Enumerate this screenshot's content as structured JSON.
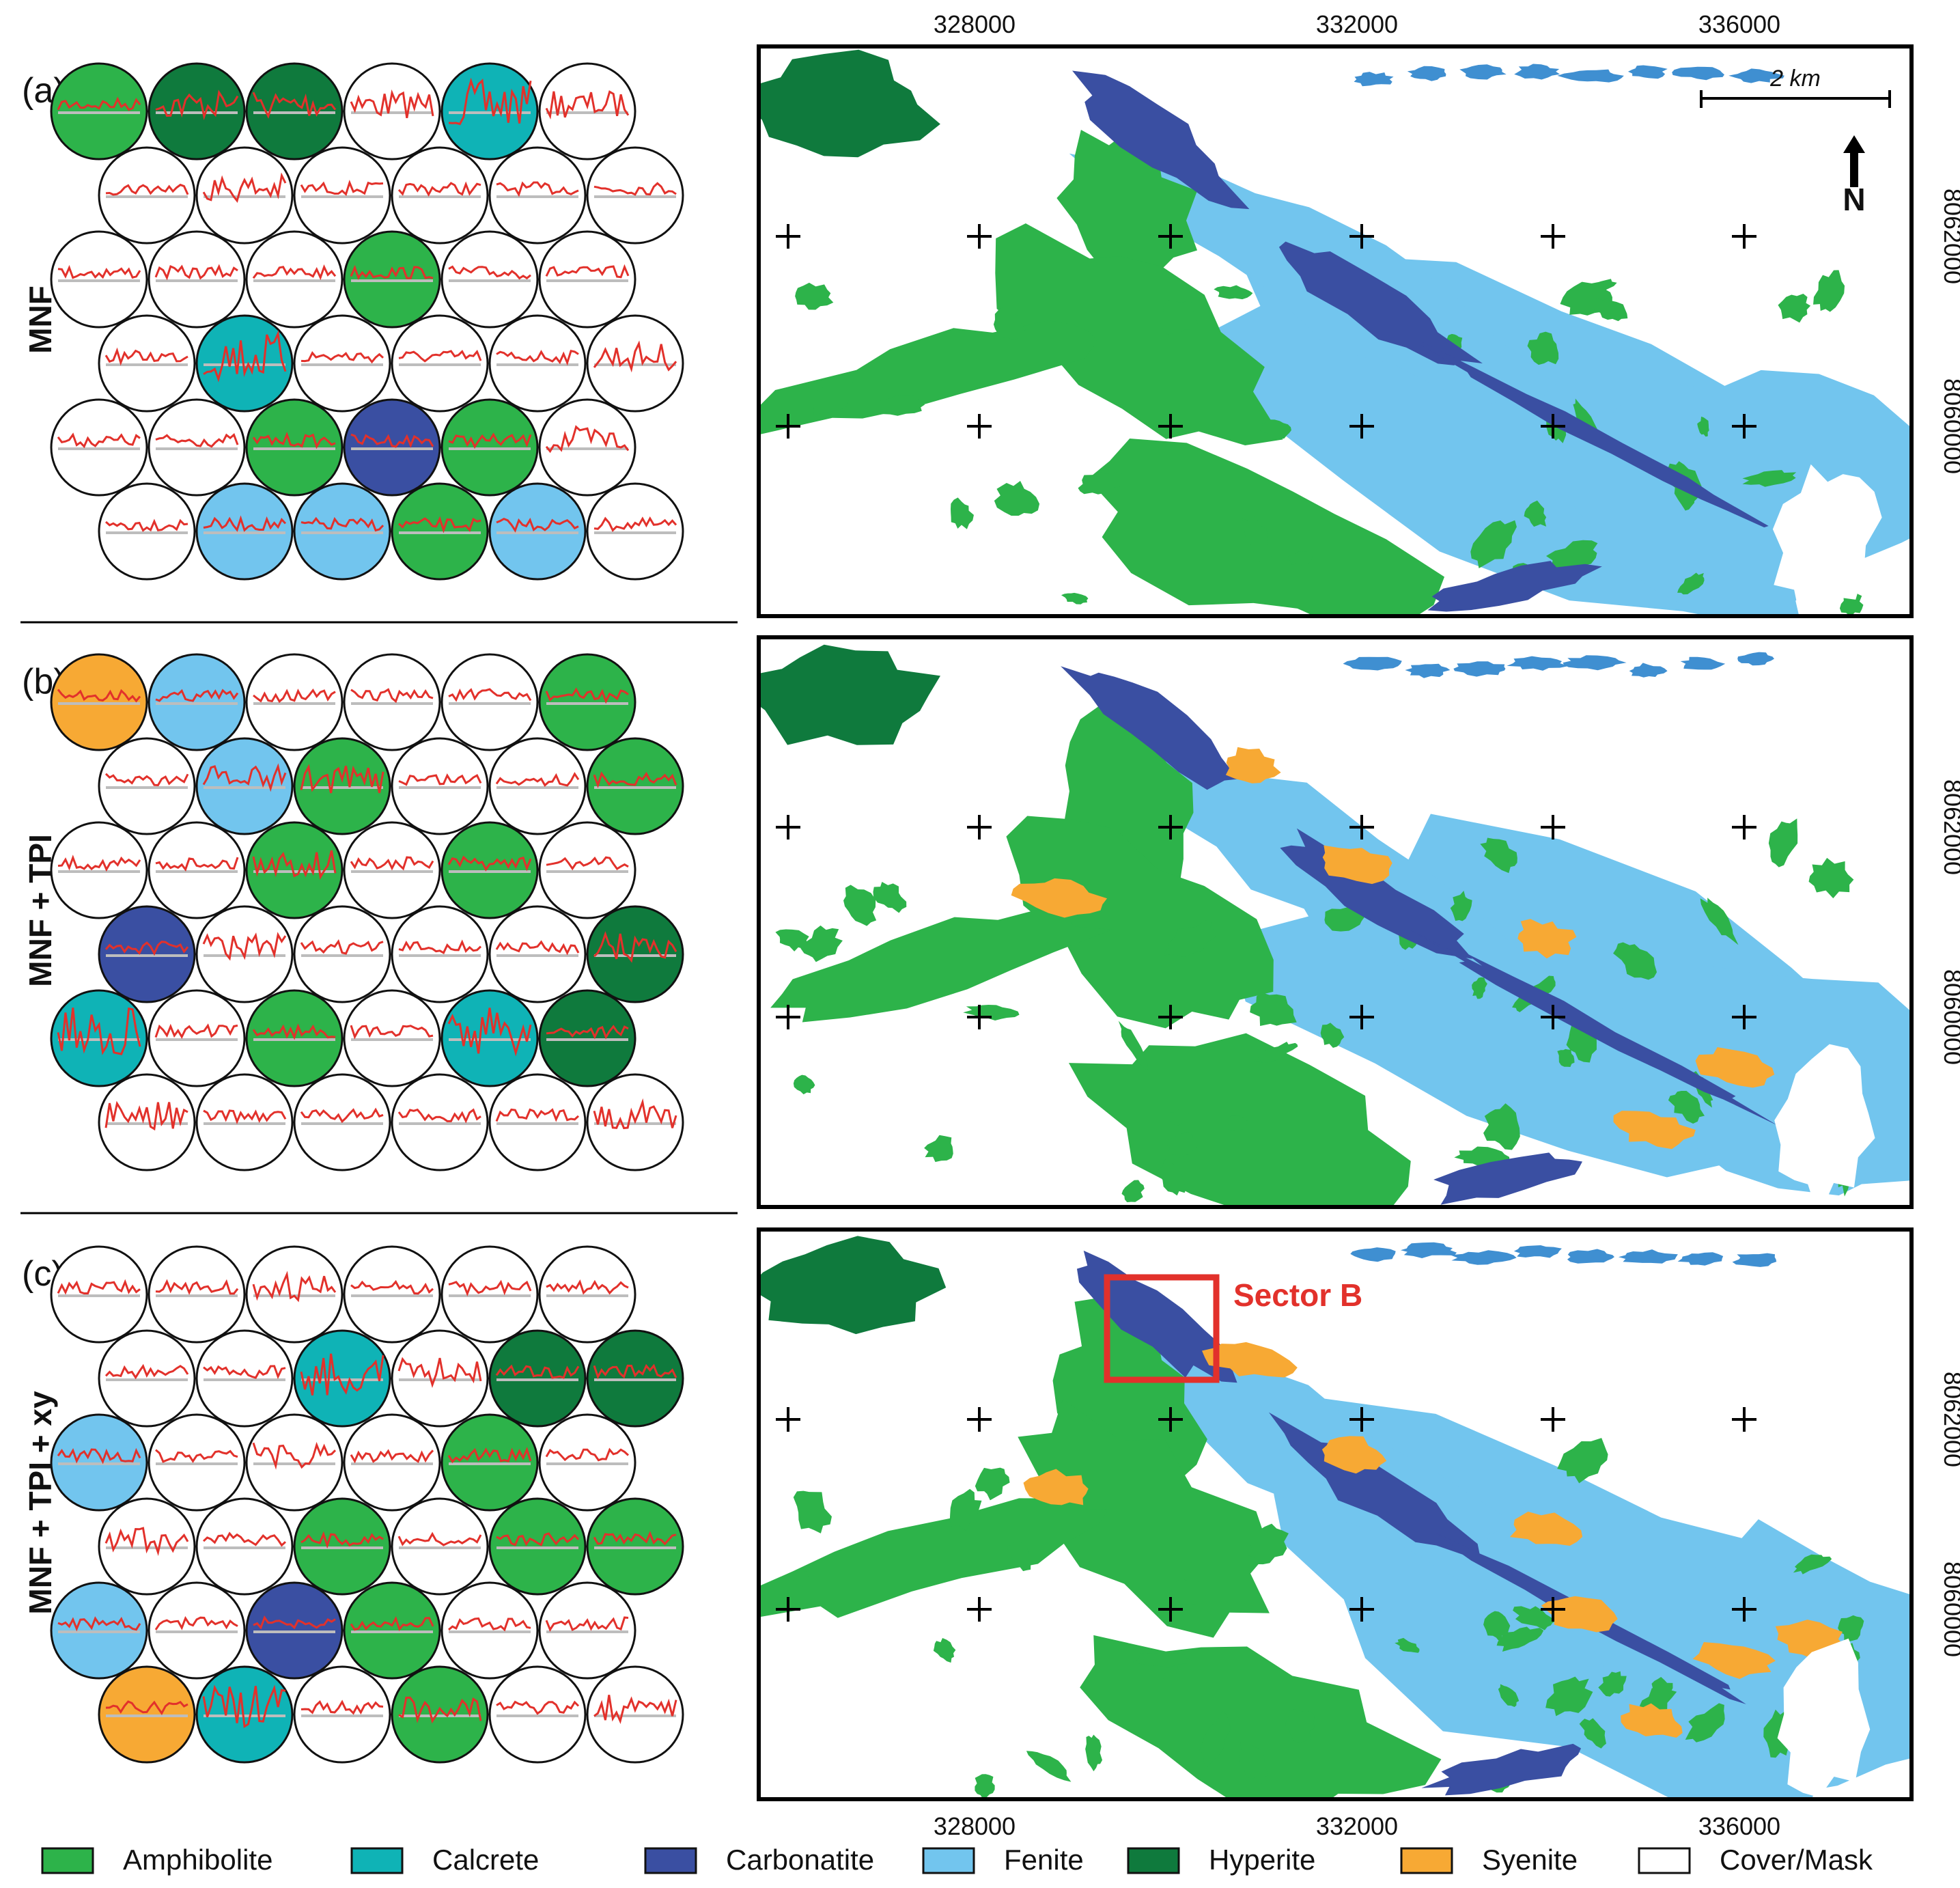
{
  "colors": {
    "Amphibolite": "#2db34a",
    "Calcrete": "#0fb3b6",
    "Carbonatite": "#3a4fa2",
    "Fenite": "#72c5ee",
    "Hyperite": "#0f7a3d",
    "Syenite": "#f7a934",
    "Cover/Mask": "#ffffff",
    "water": "#3f8fd1",
    "spectrum": "#e2312b",
    "baseline": "#bdbdbd",
    "sector": "#e2312b"
  },
  "panels": [
    {
      "letter": "(a)",
      "method": "MNF",
      "som_grid": [
        [
          "Amphibolite",
          "Hyperite",
          "Hyperite",
          "Cover/Mask",
          "Calcrete",
          "Cover/Mask"
        ],
        [
          "Cover/Mask",
          "Cover/Mask",
          "Cover/Mask",
          "Cover/Mask",
          "Cover/Mask",
          "Cover/Mask"
        ],
        [
          "Cover/Mask",
          "Cover/Mask",
          "Cover/Mask",
          "Amphibolite",
          "Cover/Mask",
          "Cover/Mask"
        ],
        [
          "Cover/Mask",
          "Calcrete",
          "Cover/Mask",
          "Cover/Mask",
          "Cover/Mask",
          "Cover/Mask"
        ],
        [
          "Cover/Mask",
          "Cover/Mask",
          "Amphibolite",
          "Carbonatite",
          "Amphibolite",
          "Cover/Mask"
        ],
        [
          "Cover/Mask",
          "Fenite",
          "Fenite",
          "Amphibolite",
          "Fenite",
          "Cover/Mask"
        ]
      ],
      "syenite_bodies": 0,
      "sector_label": ""
    },
    {
      "letter": "(b)",
      "method": "MNF + TPI",
      "som_grid": [
        [
          "Syenite",
          "Fenite",
          "Cover/Mask",
          "Cover/Mask",
          "Cover/Mask",
          "Amphibolite"
        ],
        [
          "Cover/Mask",
          "Fenite",
          "Amphibolite",
          "Cover/Mask",
          "Cover/Mask",
          "Amphibolite"
        ],
        [
          "Cover/Mask",
          "Cover/Mask",
          "Amphibolite",
          "Cover/Mask",
          "Amphibolite",
          "Cover/Mask"
        ],
        [
          "Carbonatite",
          "Cover/Mask",
          "Cover/Mask",
          "Cover/Mask",
          "Cover/Mask",
          "Hyperite"
        ],
        [
          "Calcrete",
          "Cover/Mask",
          "Amphibolite",
          "Cover/Mask",
          "Calcrete",
          "Hyperite"
        ],
        [
          "Cover/Mask",
          "Cover/Mask",
          "Cover/Mask",
          "Cover/Mask",
          "Cover/Mask",
          "Cover/Mask"
        ]
      ],
      "syenite_bodies": 6,
      "sector_label": ""
    },
    {
      "letter": "(c)",
      "method": "MNF + TPI + xy",
      "som_grid": [
        [
          "Cover/Mask",
          "Cover/Mask",
          "Cover/Mask",
          "Cover/Mask",
          "Cover/Mask",
          "Cover/Mask"
        ],
        [
          "Cover/Mask",
          "Cover/Mask",
          "Calcrete",
          "Cover/Mask",
          "Hyperite",
          "Hyperite"
        ],
        [
          "Fenite",
          "Cover/Mask",
          "Cover/Mask",
          "Cover/Mask",
          "Amphibolite",
          "Cover/Mask"
        ],
        [
          "Cover/Mask",
          "Cover/Mask",
          "Amphibolite",
          "Cover/Mask",
          "Amphibolite",
          "Amphibolite"
        ],
        [
          "Fenite",
          "Cover/Mask",
          "Carbonatite",
          "Amphibolite",
          "Cover/Mask",
          "Cover/Mask"
        ],
        [
          "Syenite",
          "Calcrete",
          "Cover/Mask",
          "Amphibolite",
          "Cover/Mask",
          "Cover/Mask"
        ]
      ],
      "syenite_bodies": 8,
      "sector_label": "Sector B"
    }
  ],
  "x_ticks": [
    "328000",
    "332000",
    "336000"
  ],
  "y_ticks": [
    "8062000",
    "8060000"
  ],
  "scale_bar": "2 km",
  "north_label": "N",
  "legend": [
    {
      "label": "Amphibolite",
      "color": "#2db34a"
    },
    {
      "label": "Calcrete",
      "color": "#0fb3b6"
    },
    {
      "label": "Carbonatite",
      "color": "#3a4fa2"
    },
    {
      "label": "Fenite",
      "color": "#72c5ee"
    },
    {
      "label": "Hyperite",
      "color": "#0f7a3d"
    },
    {
      "label": "Syenite",
      "color": "#f7a934"
    },
    {
      "label": "Cover/Mask",
      "color": "#ffffff"
    }
  ]
}
